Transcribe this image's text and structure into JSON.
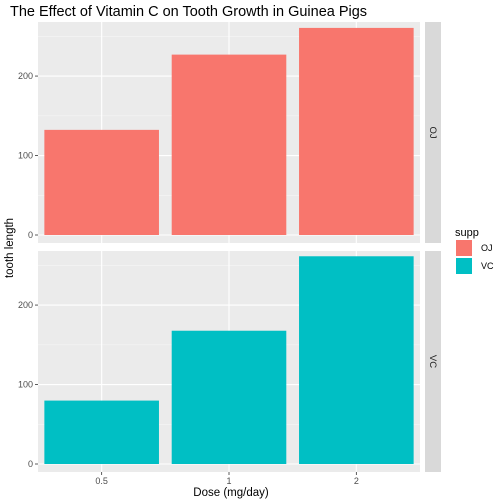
{
  "chart_data": {
    "type": "bar",
    "title": "The Effect of Vitamin C on Tooth Growth in Guinea Pigs",
    "xlabel": "Dose (mg/day)",
    "ylabel": "tooth length",
    "categories": [
      "0.5",
      "1",
      "2"
    ],
    "facet_by": "supp",
    "ylim": [
      0,
      263
    ],
    "y_ticks": [
      0,
      100,
      200
    ],
    "grid": true,
    "legend": {
      "title": "supp",
      "position": "right",
      "entries": [
        {
          "label": "OJ",
          "color": "#F8766D"
        },
        {
          "label": "VC",
          "color": "#00BFC4"
        }
      ]
    },
    "series": [
      {
        "name": "OJ",
        "color": "#F8766D",
        "values": [
          132.3,
          227.0,
          260.6
        ]
      },
      {
        "name": "VC",
        "color": "#00BFC4",
        "values": [
          79.8,
          167.7,
          261.4
        ]
      }
    ]
  }
}
